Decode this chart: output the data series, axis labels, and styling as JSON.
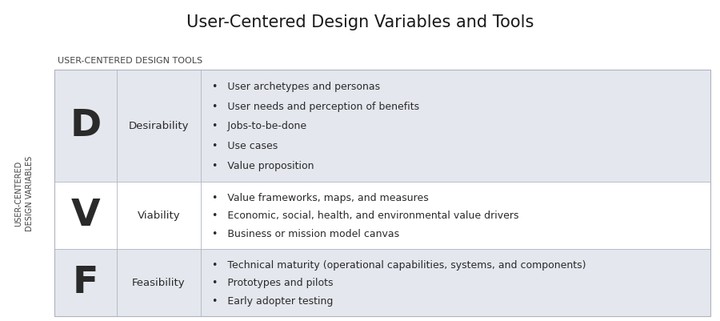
{
  "title": "User-Centered Design Variables and Tools",
  "col_header": "USER-CENTERED DESIGN TOOLS",
  "row_header_line1": "USER-CENTERED",
  "row_header_line2": "DESIGN VARIABLES",
  "background_color": "#ffffff",
  "table_bg_light": "#e4e7ee",
  "table_bg_white": "#ffffff",
  "border_color": "#b0b4c0",
  "rows": [
    {
      "letter": "D",
      "label": "Desirability",
      "bullets": [
        "User archetypes and personas",
        "User needs and perception of benefits",
        "Jobs-to-be-done",
        "Use cases",
        "Value proposition"
      ],
      "bg": "#e4e7ee"
    },
    {
      "letter": "V",
      "label": "Viability",
      "bullets": [
        "Value frameworks, maps, and measures",
        "Economic, social, health, and environmental value drivers",
        "Business or mission model canvas"
      ],
      "bg": "#ffffff"
    },
    {
      "letter": "F",
      "label": "Feasibility",
      "bullets": [
        "Technical maturity (operational capabilities, systems, and components)",
        "Prototypes and pilots",
        "Early adopter testing"
      ],
      "bg": "#e4e7ee"
    }
  ],
  "title_fontsize": 15,
  "header_fontsize": 8,
  "letter_fontsize": 34,
  "label_fontsize": 9.5,
  "bullet_fontsize": 9,
  "row_header_fontsize": 7
}
